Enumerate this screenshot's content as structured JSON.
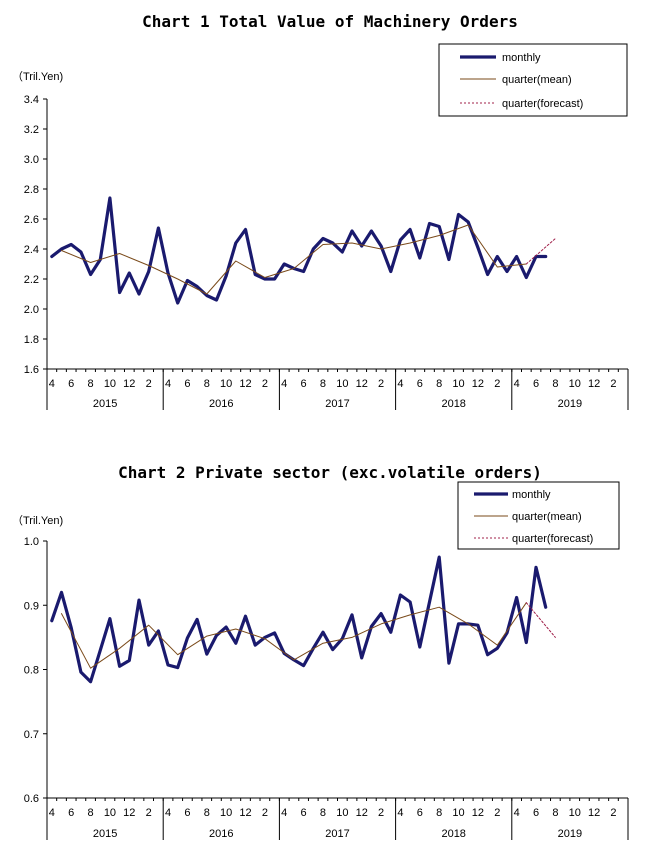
{
  "chart_data": [
    {
      "type": "line",
      "title": "Chart 1 Total Value of Machinery Orders",
      "unit": "（Tril.Yen)",
      "ylim": [
        1.6,
        3.4
      ],
      "yticks": [
        "1.6",
        "1.8",
        "2.0",
        "2.2",
        "2.4",
        "2.6",
        "2.8",
        "3.0",
        "3.2",
        "3.4"
      ],
      "x_tick_labels": [
        "4",
        "6",
        "8",
        "10",
        "12",
        "2",
        "4",
        "6",
        "8",
        "10",
        "12",
        "2",
        "4",
        "6",
        "8",
        "10",
        "12",
        "2",
        "4",
        "6",
        "8",
        "10",
        "12",
        "2",
        "4",
        "6",
        "8",
        "10",
        "12",
        "2"
      ],
      "years": [
        "2015",
        "2016",
        "2017",
        "2018",
        "2019"
      ],
      "legend": [
        "monthly",
        "quarter(mean)",
        "quarter(forecast)"
      ],
      "series": [
        {
          "name": "monthly",
          "color": "#1a1a6e",
          "values": [
            2.35,
            2.4,
            2.43,
            2.38,
            2.23,
            2.33,
            2.74,
            2.11,
            2.24,
            2.1,
            2.25,
            2.54,
            2.24,
            2.04,
            2.19,
            2.15,
            2.09,
            2.06,
            2.22,
            2.44,
            2.53,
            2.23,
            2.2,
            2.2,
            2.3,
            2.27,
            2.25,
            2.4,
            2.47,
            2.44,
            2.38,
            2.52,
            2.42,
            2.52,
            2.42,
            2.25,
            2.46,
            2.53,
            2.34,
            2.57,
            2.55,
            2.33,
            2.63,
            2.58,
            2.41,
            2.23,
            2.35,
            2.25,
            2.35,
            2.21,
            2.35,
            2.35
          ]
        },
        {
          "name": "quarter(mean)",
          "color": "#7a4a1a",
          "x_index": [
            1,
            4,
            7,
            10,
            13,
            16,
            19,
            22,
            25,
            28,
            31,
            34,
            37,
            40,
            43,
            46,
            49
          ],
          "values": [
            2.39,
            2.31,
            2.37,
            2.29,
            2.2,
            2.1,
            2.32,
            2.21,
            2.27,
            2.43,
            2.44,
            2.4,
            2.44,
            2.49,
            2.56,
            2.28,
            2.3
          ]
        },
        {
          "name": "quarter(forecast)",
          "color": "#a0204a",
          "x_index": [
            49,
            52
          ],
          "values": [
            2.3,
            2.47
          ]
        }
      ]
    },
    {
      "type": "line",
      "title": "Chart 2 Private sector (exc.volatile orders)",
      "unit": "（Tril.Yen)",
      "ylim": [
        0.6,
        1.0
      ],
      "yticks": [
        "0.6",
        "0.7",
        "0.8",
        "0.9",
        "1.0"
      ],
      "x_tick_labels": [
        "4",
        "6",
        "8",
        "10",
        "12",
        "2",
        "4",
        "6",
        "8",
        "10",
        "12",
        "2",
        "4",
        "6",
        "8",
        "10",
        "12",
        "2",
        "4",
        "6",
        "8",
        "10",
        "12",
        "2",
        "4",
        "6",
        "8",
        "10",
        "12",
        "2"
      ],
      "years": [
        "2015",
        "2016",
        "2017",
        "2018",
        "2019"
      ],
      "legend": [
        "monthly",
        "quarter(mean)",
        "quarter(forecast)"
      ],
      "series": [
        {
          "name": "monthly",
          "color": "#1a1a6e",
          "values": [
            0.876,
            0.92,
            0.865,
            0.796,
            0.781,
            0.83,
            0.879,
            0.805,
            0.814,
            0.908,
            0.838,
            0.86,
            0.807,
            0.803,
            0.849,
            0.878,
            0.824,
            0.853,
            0.866,
            0.841,
            0.883,
            0.838,
            0.85,
            0.857,
            0.825,
            0.815,
            0.806,
            0.833,
            0.858,
            0.831,
            0.848,
            0.885,
            0.818,
            0.867,
            0.887,
            0.858,
            0.916,
            0.905,
            0.835,
            0.905,
            0.975,
            0.81,
            0.871,
            0.871,
            0.869,
            0.823,
            0.833,
            0.857,
            0.912,
            0.842,
            0.959,
            0.897
          ]
        },
        {
          "name": "quarter(mean)",
          "color": "#7a4a1a",
          "x_index": [
            1,
            4,
            7,
            10,
            13,
            16,
            19,
            22,
            25,
            28,
            31,
            34,
            37,
            40,
            43,
            46,
            49
          ],
          "values": [
            0.887,
            0.802,
            0.833,
            0.869,
            0.823,
            0.852,
            0.863,
            0.848,
            0.815,
            0.841,
            0.85,
            0.871,
            0.885,
            0.897,
            0.871,
            0.838,
            0.904
          ]
        },
        {
          "name": "quarter(forecast)",
          "color": "#a0204a",
          "x_index": [
            49,
            52
          ],
          "values": [
            0.904,
            0.85
          ]
        }
      ]
    }
  ]
}
